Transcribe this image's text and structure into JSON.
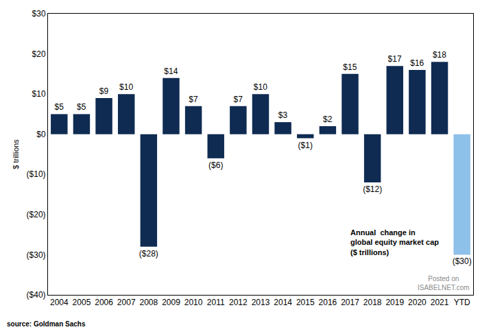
{
  "chart_data": {
    "type": "bar",
    "y_label": "$ trillions",
    "categories": [
      "2004",
      "2005",
      "2006",
      "2007",
      "2008",
      "2009",
      "2010",
      "2011",
      "2012",
      "2013",
      "2014",
      "2015",
      "2016",
      "2017",
      "2018",
      "2019",
      "2020",
      "2021",
      "YTD"
    ],
    "values": [
      5,
      5,
      9,
      10,
      -28,
      14,
      7,
      -6,
      7,
      10,
      3,
      -1,
      2,
      15,
      -12,
      17,
      16,
      18,
      -30
    ],
    "value_labels": [
      "$5",
      "$5",
      "$9",
      "$10",
      "($28)",
      "$14",
      "$7",
      "($6)",
      "$7",
      "$10",
      "$3",
      "($1)",
      "$2",
      "$15",
      "($12)",
      "$17",
      "$16",
      "$18",
      "($30)"
    ],
    "colors": [
      "#0f2b52",
      "#0f2b52",
      "#0f2b52",
      "#0f2b52",
      "#0f2b52",
      "#0f2b52",
      "#0f2b52",
      "#0f2b52",
      "#0f2b52",
      "#0f2b52",
      "#0f2b52",
      "#0f2b52",
      "#0f2b52",
      "#0f2b52",
      "#0f2b52",
      "#0f2b52",
      "#0f2b52",
      "#0f2b52",
      "#8ec1ea"
    ],
    "ylim": [
      -40,
      30
    ],
    "yticks": [
      {
        "value": 30,
        "label": "$30"
      },
      {
        "value": 20,
        "label": "$20"
      },
      {
        "value": 10,
        "label": "$10"
      },
      {
        "value": 0,
        "label": "$0"
      },
      {
        "value": -10,
        "label": "($10)"
      },
      {
        "value": -20,
        "label": "($20)"
      },
      {
        "value": -30,
        "label": "($30)"
      },
      {
        "value": -40,
        "label": "($40)"
      }
    ],
    "data_labels": true,
    "grid": false,
    "annotations": [
      {
        "text": [
          "Annual  change in",
          "global equity market cap",
          "($ trillions)"
        ]
      },
      {
        "text": [
          "Posted on",
          "ISABELNET.com"
        ]
      },
      {
        "text": [
          "source: Goldman Sachs"
        ]
      }
    ]
  }
}
